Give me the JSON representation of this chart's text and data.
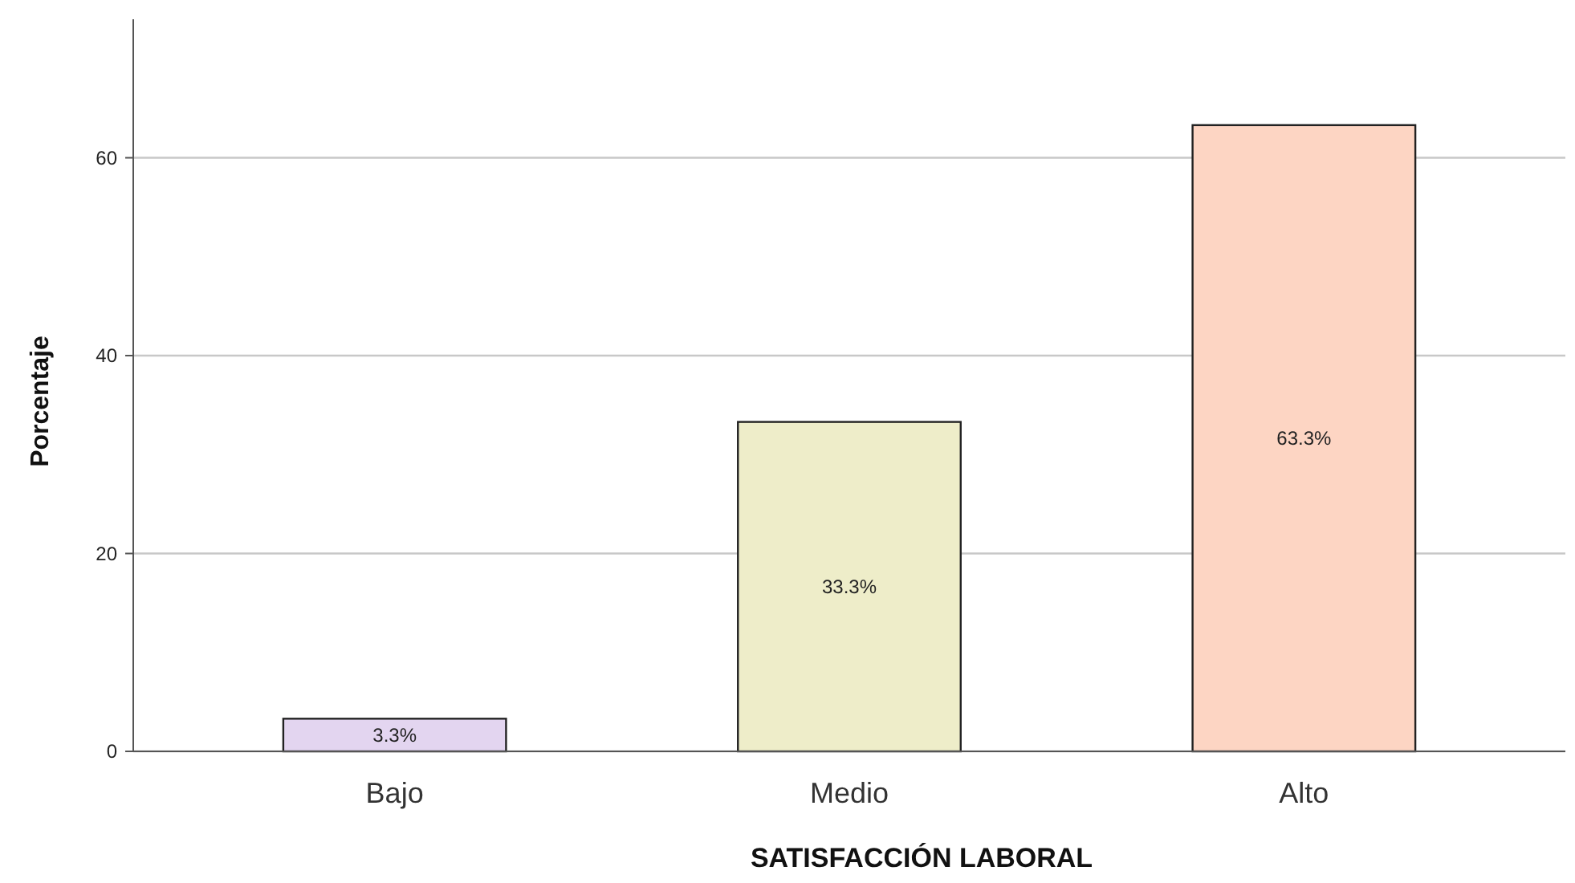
{
  "chart_data": {
    "type": "bar",
    "xlabel": "SATISFACCIÓN LABORAL",
    "ylabel": "Porcentaje",
    "categories": [
      "Bajo",
      "Medio",
      "Alto"
    ],
    "values": [
      3.3,
      33.3,
      63.3
    ],
    "colors": [
      "#e3d5f0",
      "#eeedc9",
      "#fdd5c3"
    ],
    "value_labels": [
      "3.3%",
      "33.3%",
      "63.3%"
    ],
    "ylim": [
      0,
      74
    ],
    "yticks": [
      0,
      20,
      40,
      60
    ],
    "grid": "y"
  }
}
